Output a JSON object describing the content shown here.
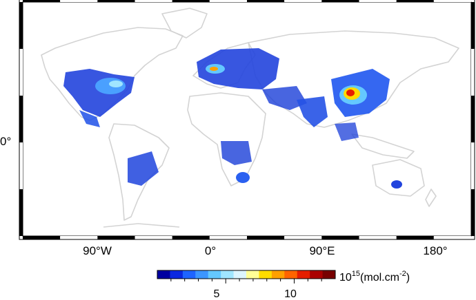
{
  "map": {
    "projection": "equirectangular",
    "lon_range": [
      -180,
      180
    ],
    "lat_range": [
      -60,
      90
    ],
    "frame_style": "alternating black/white",
    "coastline_color": "#d9d9d9",
    "background_color": "#ffffff",
    "x_ticks": [
      "90°W",
      "0°",
      "90°E",
      "180°"
    ],
    "y_ticks": [
      "0°"
    ]
  },
  "colorbar": {
    "min": 0,
    "max": 13,
    "tick_labels": [
      "5",
      "10"
    ],
    "tick_values": [
      5,
      10
    ],
    "unit_base": "10",
    "unit_exponent": "15",
    "unit_text": "(mol.cm",
    "unit_exponent2": "-2",
    "unit_close": ")",
    "colormap": [
      "#0000a0",
      "#0a28e0",
      "#1e64ff",
      "#3c96ff",
      "#64c8ff",
      "#a0e6ff",
      "#dcf5ff",
      "#ffff96",
      "#ffdc00",
      "#ffa000",
      "#ff6400",
      "#e61e00",
      "#aa0000",
      "#780000"
    ]
  }
}
